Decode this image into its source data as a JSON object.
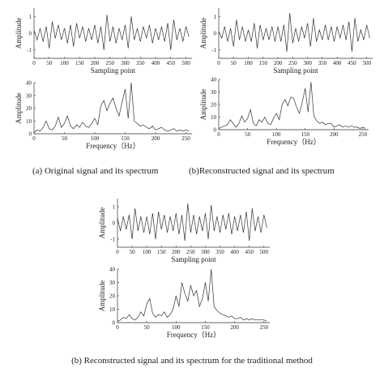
{
  "chart_data": [
    {
      "type": "line",
      "ylabel": "Amplitude",
      "xlabel": "Sampling point",
      "xlim": [
        0,
        520
      ],
      "ylim": [
        -1.5,
        1.5
      ],
      "xticks": [
        0,
        50,
        100,
        150,
        200,
        250,
        300,
        350,
        400,
        450,
        500
      ],
      "yticks": [
        -1,
        0,
        1
      ],
      "x": [
        0,
        10,
        20,
        30,
        40,
        50,
        60,
        70,
        80,
        90,
        100,
        110,
        120,
        130,
        140,
        150,
        160,
        170,
        180,
        190,
        200,
        210,
        220,
        230,
        240,
        250,
        260,
        270,
        280,
        290,
        300,
        310,
        320,
        330,
        340,
        350,
        360,
        370,
        380,
        390,
        400,
        410,
        420,
        430,
        440,
        450,
        460,
        470,
        480,
        490,
        500,
        510
      ],
      "values": [
        0.2,
        -0.4,
        0.3,
        -0.5,
        0.4,
        -0.9,
        0.7,
        -0.3,
        0.5,
        -0.4,
        0.3,
        -0.6,
        0.5,
        -0.8,
        0.6,
        -0.3,
        0.4,
        -0.5,
        0.3,
        -0.4,
        0.5,
        -0.6,
        0.4,
        -1.0,
        1.1,
        -0.5,
        0.4,
        -0.6,
        0.3,
        -0.4,
        0.5,
        -0.9,
        1.0,
        -0.4,
        0.3,
        -0.5,
        0.4,
        -0.3,
        0.5,
        -0.6,
        0.3,
        -0.4,
        0.4,
        -0.5,
        0.6,
        -1.0,
        0.8,
        -0.4,
        0.3,
        -0.5,
        0.4,
        -0.2
      ]
    },
    {
      "type": "line",
      "ylabel": "Amplitude",
      "xlabel": "Frequency（Hz）",
      "xlim": [
        0,
        260
      ],
      "ylim": [
        0,
        40
      ],
      "xticks": [
        0,
        50,
        100,
        150,
        200,
        250
      ],
      "yticks": [
        0,
        10,
        20,
        30,
        40
      ],
      "x": [
        0,
        5,
        10,
        15,
        20,
        25,
        30,
        35,
        40,
        45,
        50,
        55,
        60,
        65,
        70,
        75,
        80,
        85,
        90,
        95,
        100,
        105,
        110,
        115,
        120,
        125,
        130,
        135,
        140,
        145,
        150,
        155,
        160,
        165,
        170,
        175,
        180,
        185,
        190,
        195,
        200,
        205,
        210,
        215,
        220,
        225,
        230,
        235,
        240,
        245,
        250,
        255
      ],
      "values": [
        1,
        3,
        2,
        5,
        10,
        4,
        3,
        6,
        13,
        5,
        8,
        14,
        6,
        4,
        7,
        5,
        9,
        6,
        5,
        8,
        12,
        7,
        22,
        26,
        18,
        24,
        28,
        20,
        14,
        25,
        35,
        12,
        40,
        10,
        8,
        6,
        7,
        5,
        4,
        6,
        3,
        4,
        5,
        3,
        2,
        3,
        4,
        2,
        3,
        2,
        3,
        2
      ]
    },
    {
      "type": "line",
      "ylabel": "Amplitude",
      "xlabel": "Sampling point",
      "xlim": [
        0,
        520
      ],
      "ylim": [
        -1.5,
        1.5
      ],
      "xticks": [
        0,
        50,
        100,
        150,
        200,
        250,
        300,
        350,
        400,
        450,
        500
      ],
      "yticks": [
        -1,
        0,
        1
      ],
      "x": [
        0,
        10,
        20,
        30,
        40,
        50,
        60,
        70,
        80,
        90,
        100,
        110,
        120,
        130,
        140,
        150,
        160,
        170,
        180,
        190,
        200,
        210,
        220,
        230,
        240,
        250,
        260,
        270,
        280,
        290,
        300,
        310,
        320,
        330,
        340,
        350,
        360,
        370,
        380,
        390,
        400,
        410,
        420,
        430,
        440,
        450,
        460,
        470,
        480,
        490,
        500,
        510
      ],
      "values": [
        0.1,
        -0.3,
        0.4,
        -0.5,
        0.3,
        -0.8,
        0.8,
        -0.4,
        0.4,
        -0.5,
        0.2,
        -0.5,
        0.6,
        -0.9,
        0.5,
        -0.4,
        0.3,
        -0.4,
        0.4,
        -0.5,
        0.4,
        -0.5,
        0.5,
        -1.1,
        1.2,
        -0.6,
        0.3,
        -0.5,
        0.4,
        -0.3,
        0.6,
        -0.8,
        0.9,
        -0.5,
        0.2,
        -0.4,
        0.5,
        -0.4,
        0.4,
        -0.5,
        0.4,
        -0.3,
        0.5,
        -0.4,
        0.7,
        -1.1,
        0.9,
        -0.5,
        0.2,
        -0.4,
        0.5,
        -0.3
      ]
    },
    {
      "type": "line",
      "ylabel": "Amplitude",
      "xlabel": "Frequency（Hz）",
      "xlim": [
        0,
        260
      ],
      "ylim": [
        0,
        40
      ],
      "xticks": [
        0,
        50,
        100,
        150,
        200,
        250
      ],
      "yticks": [
        0,
        10,
        20,
        30,
        40
      ],
      "x": [
        0,
        5,
        10,
        15,
        20,
        25,
        30,
        35,
        40,
        45,
        50,
        55,
        60,
        65,
        70,
        75,
        80,
        85,
        90,
        95,
        100,
        105,
        110,
        115,
        120,
        125,
        130,
        135,
        140,
        145,
        150,
        155,
        160,
        165,
        170,
        175,
        180,
        185,
        190,
        195,
        200,
        205,
        210,
        215,
        220,
        225,
        230,
        235,
        240,
        245,
        250,
        255
      ],
      "values": [
        1,
        2,
        3,
        4,
        8,
        5,
        2,
        5,
        11,
        6,
        9,
        16,
        5,
        3,
        8,
        6,
        10,
        5,
        4,
        9,
        13,
        8,
        20,
        24,
        19,
        26,
        25,
        18,
        13,
        22,
        33,
        14,
        38,
        11,
        7,
        5,
        6,
        4,
        5,
        5,
        2,
        3,
        4,
        2,
        3,
        2,
        3,
        2,
        2,
        1,
        2,
        1
      ]
    },
    {
      "type": "line",
      "ylabel": "Amplitude",
      "xlabel": "Sampling point",
      "xlim": [
        0,
        520
      ],
      "ylim": [
        -1.5,
        1.5
      ],
      "xticks": [
        0,
        50,
        100,
        150,
        200,
        250,
        300,
        350,
        400,
        450,
        500
      ],
      "yticks": [
        -1,
        0,
        1
      ],
      "x": [
        0,
        10,
        20,
        30,
        40,
        50,
        60,
        70,
        80,
        90,
        100,
        110,
        120,
        130,
        140,
        150,
        160,
        170,
        180,
        190,
        200,
        210,
        220,
        230,
        240,
        250,
        260,
        270,
        280,
        290,
        300,
        310,
        320,
        330,
        340,
        350,
        360,
        370,
        380,
        390,
        400,
        410,
        420,
        430,
        440,
        450,
        460,
        470,
        480,
        490,
        500,
        510
      ],
      "values": [
        0.3,
        -0.5,
        0.4,
        -0.4,
        0.5,
        -1.0,
        0.9,
        -0.5,
        0.4,
        -0.6,
        0.4,
        -0.7,
        0.6,
        -1.0,
        0.7,
        -0.4,
        0.5,
        -0.6,
        0.4,
        -0.5,
        0.6,
        -0.7,
        0.5,
        -1.1,
        1.2,
        -0.6,
        0.5,
        -0.7,
        0.4,
        -0.5,
        0.6,
        -1.0,
        1.1,
        -0.5,
        0.4,
        -0.6,
        0.5,
        -0.4,
        0.6,
        -0.7,
        0.4,
        -0.5,
        0.5,
        -0.6,
        0.7,
        -1.1,
        0.9,
        -0.5,
        0.4,
        -0.6,
        0.5,
        -0.3
      ]
    },
    {
      "type": "line",
      "ylabel": "Amplitude",
      "xlabel": "Frequency（Hz）",
      "xlim": [
        0,
        260
      ],
      "ylim": [
        0,
        40
      ],
      "xticks": [
        0,
        50,
        100,
        150,
        200,
        250
      ],
      "yticks": [
        0,
        10,
        20,
        30,
        40
      ],
      "x": [
        0,
        5,
        10,
        15,
        20,
        25,
        30,
        35,
        40,
        45,
        50,
        55,
        60,
        65,
        70,
        75,
        80,
        85,
        90,
        95,
        100,
        105,
        110,
        115,
        120,
        125,
        130,
        135,
        140,
        145,
        150,
        155,
        160,
        165,
        170,
        175,
        180,
        185,
        190,
        195,
        200,
        205,
        210,
        215,
        220,
        225,
        230,
        235,
        240,
        245,
        250,
        255
      ],
      "values": [
        1,
        2,
        4,
        3,
        6,
        3,
        2,
        4,
        8,
        5,
        14,
        18,
        7,
        4,
        6,
        5,
        8,
        4,
        6,
        10,
        20,
        12,
        30,
        22,
        16,
        28,
        20,
        24,
        12,
        18,
        30,
        16,
        40,
        12,
        9,
        7,
        6,
        5,
        4,
        5,
        3,
        3,
        4,
        2,
        3,
        2,
        3,
        2,
        2,
        2,
        2,
        1
      ]
    }
  ],
  "captions": [
    "(a)  Original signal and its spectrum",
    "(b)Reconstructed signal and its spectrum",
    "(b)  Reconstructed signal and its spectrum for the traditional method"
  ]
}
